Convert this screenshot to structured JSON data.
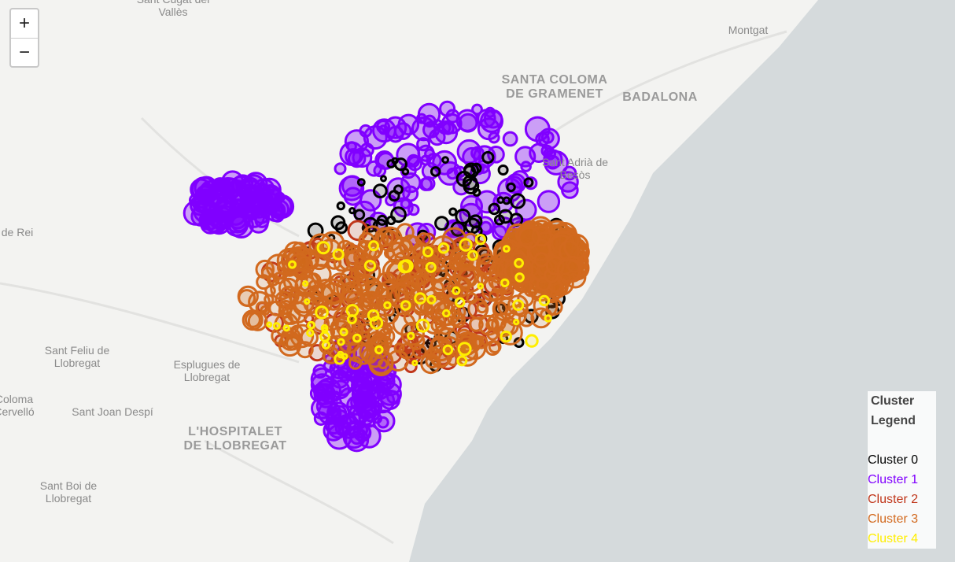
{
  "map": {
    "zoom": {
      "in": "+",
      "out": "−"
    },
    "place_labels": [
      {
        "lines": [
          "Sant Cugat del",
          "Vallès"
        ]
      },
      {
        "lines": [
          "Montgat"
        ]
      },
      {
        "lines": [
          "SANTA COLOMA",
          "DE GRAMENET"
        ]
      },
      {
        "lines": [
          "BADALONA"
        ]
      },
      {
        "lines": [
          "Sant Adrià de",
          "Besòs"
        ]
      },
      {
        "lines": [
          "de Rei"
        ]
      },
      {
        "lines": [
          "Sant Feliu de",
          "Llobregat"
        ]
      },
      {
        "lines": [
          "Esplugues de",
          "Llobregat"
        ]
      },
      {
        "lines": [
          "Sant Joan Despí"
        ]
      },
      {
        "lines": [
          "L'HOSPITALET",
          "DE LLOBREGAT"
        ]
      },
      {
        "lines": [
          "Sant Boi de",
          "Llobregat"
        ]
      },
      {
        "lines": [
          "Coloma",
          "Cervelló"
        ]
      }
    ],
    "legend": {
      "title": "Cluster Legend",
      "items": [
        {
          "label": "Cluster 0",
          "color": "#000000"
        },
        {
          "label": "Cluster 1",
          "color": "#8000ff"
        },
        {
          "label": "Cluster 2",
          "color": "#c0361a"
        },
        {
          "label": "Cluster 3",
          "color": "#d2691e"
        },
        {
          "label": "Cluster 4",
          "color": "#ffee00"
        }
      ]
    }
  }
}
